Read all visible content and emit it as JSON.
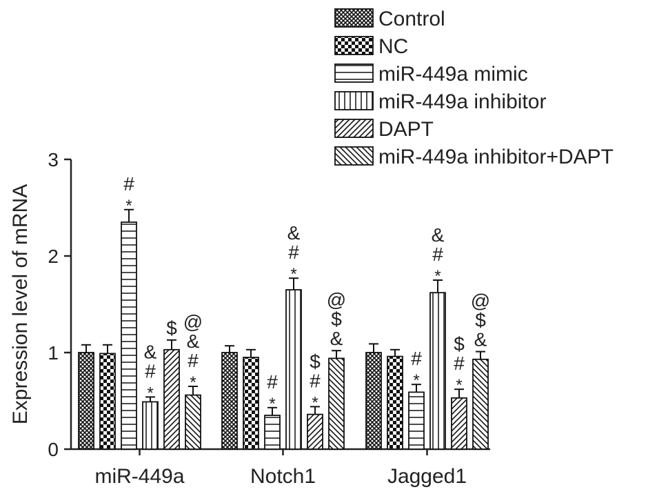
{
  "chart_data": {
    "type": "bar",
    "title": "",
    "xlabel": "",
    "ylabel": "Expression level of mRNA",
    "ylim": [
      0,
      3
    ],
    "yticks": [
      0,
      1,
      2,
      3
    ],
    "grid": false,
    "legend_position": "top-right",
    "categories": [
      "miR-449a",
      "Notch1",
      "Jagged1"
    ],
    "series": [
      {
        "name": "Control",
        "pattern": "crosshatch-fine",
        "values": [
          1.0,
          1.0,
          1.0
        ],
        "errors": [
          0.08,
          0.07,
          0.09
        ],
        "marks": [
          "",
          "",
          ""
        ]
      },
      {
        "name": "NC",
        "pattern": "checker",
        "values": [
          0.99,
          0.95,
          0.96
        ],
        "errors": [
          0.09,
          0.08,
          0.07
        ],
        "marks": [
          "",
          "",
          ""
        ]
      },
      {
        "name": "miR-449a mimic",
        "pattern": "horizontal",
        "values": [
          2.35,
          0.35,
          0.59
        ],
        "errors": [
          0.13,
          0.08,
          0.08
        ],
        "marks": [
          "*,#",
          "*,#",
          "*,#"
        ]
      },
      {
        "name": "miR-449a inhibitor",
        "pattern": "vertical",
        "values": [
          0.49,
          1.65,
          1.62
        ],
        "errors": [
          0.05,
          0.12,
          0.13
        ],
        "marks": [
          "*,#,&",
          "*,#,&",
          "*,#,&"
        ]
      },
      {
        "name": "DAPT",
        "pattern": "diagonal-up",
        "values": [
          1.03,
          0.36,
          0.53
        ],
        "errors": [
          0.1,
          0.08,
          0.09
        ],
        "marks": [
          "$",
          "*,#,$",
          "*,#,$"
        ]
      },
      {
        "name": "miR-449a inhibitor+DAPT",
        "pattern": "diagonal-down",
        "values": [
          0.56,
          0.94,
          0.93
        ],
        "errors": [
          0.09,
          0.08,
          0.08
        ],
        "marks": [
          "*,#,&,@",
          "&,$,@",
          "&,$,@"
        ]
      }
    ]
  }
}
